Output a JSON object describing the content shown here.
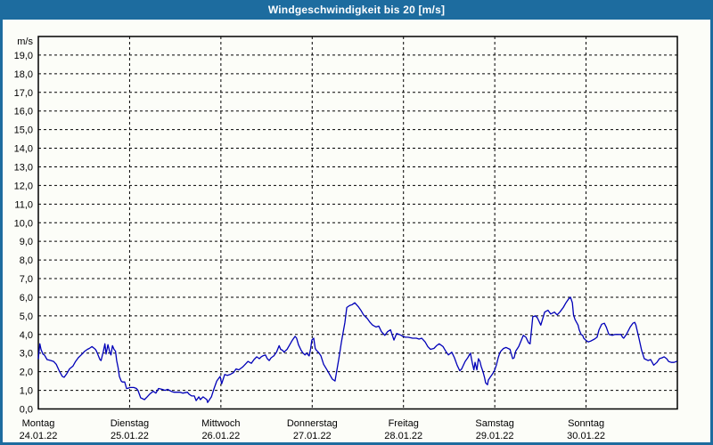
{
  "window": {
    "title": "Windgeschwindigkeit bis 20 [m/s]"
  },
  "colors": {
    "frame_blue": "#1d6c9f",
    "title_text": "#ffffff",
    "content_bg": "#fcfdf8",
    "axis_black": "#000000",
    "line_blue": "#0000b8"
  },
  "chart_data": {
    "type": "line",
    "title": "Windgeschwindigkeit bis 20 [m/s]",
    "unit_label": "m/s",
    "ylim": [
      0,
      20
    ],
    "ytick_step": 1,
    "ytick_decimal_comma": true,
    "grid": "dashed",
    "legend": "none",
    "x_range_hours": [
      0,
      168
    ],
    "day_span_hours": 24,
    "days": [
      {
        "name": "Montag",
        "date": "24.01.22"
      },
      {
        "name": "Dienstag",
        "date": "25.01.22"
      },
      {
        "name": "Mittwoch",
        "date": "26.01.22"
      },
      {
        "name": "Donnerstag",
        "date": "27.01.22"
      },
      {
        "name": "Freitag",
        "date": "28.01.22"
      },
      {
        "name": "Samstag",
        "date": "29.01.22"
      },
      {
        "name": "Sonntag",
        "date": "30.01.22"
      }
    ],
    "series": [
      {
        "name": "Windgeschwindigkeit [m/s]",
        "color": "#0000b8",
        "points": [
          [
            0,
            2.7
          ],
          [
            0.4,
            3.5
          ],
          [
            0.7,
            3.2
          ],
          [
            1.2,
            2.95
          ],
          [
            1.6,
            2.9
          ],
          [
            2.3,
            2.65
          ],
          [
            3.3,
            2.6
          ],
          [
            4,
            2.55
          ],
          [
            4.7,
            2.4
          ],
          [
            5.6,
            2
          ],
          [
            6.3,
            1.75
          ],
          [
            6.8,
            1.7
          ],
          [
            7.5,
            1.9
          ],
          [
            8.2,
            2.15
          ],
          [
            9.1,
            2.3
          ],
          [
            9.8,
            2.55
          ],
          [
            10.5,
            2.75
          ],
          [
            11.5,
            2.95
          ],
          [
            12.2,
            3.1
          ],
          [
            12.9,
            3.2
          ],
          [
            13.4,
            3.25
          ],
          [
            14.1,
            3.35
          ],
          [
            15,
            3.2
          ],
          [
            15.3,
            3.1
          ],
          [
            16.2,
            2.65
          ],
          [
            16.5,
            2.6
          ],
          [
            17.1,
            3.1
          ],
          [
            17.5,
            3.5
          ],
          [
            17.8,
            2.95
          ],
          [
            18.3,
            3.45
          ],
          [
            18.8,
            3.05
          ],
          [
            19.1,
            2.9
          ],
          [
            19.5,
            3.4
          ],
          [
            19.9,
            3.2
          ],
          [
            20.3,
            3.1
          ],
          [
            20.6,
            2.6
          ],
          [
            21,
            2.2
          ],
          [
            21.3,
            1.75
          ],
          [
            21.8,
            1.5
          ],
          [
            22.1,
            1.45
          ],
          [
            22.7,
            1.45
          ],
          [
            23.2,
            1.1
          ],
          [
            23.4,
            1.1
          ],
          [
            24.1,
            1.15
          ],
          [
            25.1,
            1.15
          ],
          [
            25.8,
            1.1
          ],
          [
            26.2,
            1
          ],
          [
            26.9,
            0.6
          ],
          [
            27.9,
            0.5
          ],
          [
            28.6,
            0.65
          ],
          [
            29.3,
            0.8
          ],
          [
            30.2,
            0.95
          ],
          [
            30.9,
            0.85
          ],
          [
            31.6,
            1.1
          ],
          [
            32.6,
            1.05
          ],
          [
            33.3,
            1
          ],
          [
            34,
            1.05
          ],
          [
            34.9,
            0.95
          ],
          [
            35.6,
            0.9
          ],
          [
            37.3,
            0.9
          ],
          [
            38,
            0.85
          ],
          [
            39.2,
            0.9
          ],
          [
            39.6,
            0.8
          ],
          [
            40.3,
            0.7
          ],
          [
            41,
            0.7
          ],
          [
            41.5,
            0.45
          ],
          [
            42.2,
            0.65
          ],
          [
            42.6,
            0.5
          ],
          [
            43.3,
            0.65
          ],
          [
            44.3,
            0.5
          ],
          [
            44.5,
            0.35
          ],
          [
            45.5,
            0.65
          ],
          [
            46.2,
            1.1
          ],
          [
            46.9,
            1.5
          ],
          [
            47.8,
            1.75
          ],
          [
            48.2,
            1.35
          ],
          [
            49,
            1.85
          ],
          [
            49.7,
            1.8
          ],
          [
            50.4,
            1.85
          ],
          [
            51.3,
            1.95
          ],
          [
            52,
            2.15
          ],
          [
            52.7,
            2.1
          ],
          [
            53.7,
            2.25
          ],
          [
            54.4,
            2.4
          ],
          [
            55.1,
            2.55
          ],
          [
            56,
            2.45
          ],
          [
            56.7,
            2.65
          ],
          [
            57.4,
            2.8
          ],
          [
            58.1,
            2.7
          ],
          [
            58.6,
            2.8
          ],
          [
            59,
            2.85
          ],
          [
            59.7,
            2.9
          ],
          [
            60.2,
            2.7
          ],
          [
            60.7,
            2.6
          ],
          [
            61.2,
            2.75
          ],
          [
            61.9,
            2.85
          ],
          [
            62.6,
            3.05
          ],
          [
            63.3,
            3.4
          ],
          [
            63.7,
            3.2
          ],
          [
            64.2,
            3.15
          ],
          [
            64.6,
            3.05
          ],
          [
            65.4,
            3.2
          ],
          [
            66.1,
            3.45
          ],
          [
            66.8,
            3.7
          ],
          [
            67.5,
            3.9
          ],
          [
            67.9,
            3.8
          ],
          [
            68.4,
            3.45
          ],
          [
            69.1,
            3.15
          ],
          [
            69.6,
            3
          ],
          [
            70.1,
            2.9
          ],
          [
            70.5,
            3
          ],
          [
            71.2,
            2.85
          ],
          [
            71.6,
            3.25
          ],
          [
            71.9,
            3.7
          ],
          [
            72.4,
            3.8
          ],
          [
            72.8,
            3.25
          ],
          [
            73.1,
            3.15
          ],
          [
            73.6,
            3.05
          ],
          [
            73.8,
            3
          ],
          [
            74.3,
            2.85
          ],
          [
            75,
            2.4
          ],
          [
            75.9,
            2.1
          ],
          [
            76.6,
            1.85
          ],
          [
            77.3,
            1.6
          ],
          [
            78,
            1.5
          ],
          [
            79,
            2.7
          ],
          [
            79.7,
            3.6
          ],
          [
            80.6,
            4.65
          ],
          [
            81.1,
            5.45
          ],
          [
            81.8,
            5.55
          ],
          [
            82.5,
            5.6
          ],
          [
            83.2,
            5.7
          ],
          [
            84.1,
            5.5
          ],
          [
            84.8,
            5.3
          ],
          [
            85.5,
            5.05
          ],
          [
            86.5,
            4.85
          ],
          [
            87.2,
            4.65
          ],
          [
            87.9,
            4.5
          ],
          [
            88.8,
            4.4
          ],
          [
            89.5,
            4.45
          ],
          [
            90.2,
            4.15
          ],
          [
            91.1,
            3.95
          ],
          [
            91.8,
            4.15
          ],
          [
            92.6,
            4.25
          ],
          [
            93,
            4
          ],
          [
            93.5,
            3.7
          ],
          [
            94.2,
            4.05
          ],
          [
            94.9,
            4
          ],
          [
            95.4,
            3.95
          ],
          [
            95.8,
            3.9
          ],
          [
            96.5,
            3.85
          ],
          [
            97.2,
            3.85
          ],
          [
            98.4,
            3.8
          ],
          [
            99.4,
            3.8
          ],
          [
            100.1,
            3.75
          ],
          [
            100.8,
            3.8
          ],
          [
            101.7,
            3.6
          ],
          [
            102.4,
            3.35
          ],
          [
            103.1,
            3.2
          ],
          [
            104,
            3.25
          ],
          [
            104.7,
            3.4
          ],
          [
            105.4,
            3.5
          ],
          [
            106.4,
            3.35
          ],
          [
            107.1,
            3.1
          ],
          [
            107.8,
            2.9
          ],
          [
            108.7,
            3.05
          ],
          [
            109.4,
            2.75
          ],
          [
            110.1,
            2.35
          ],
          [
            110.8,
            2.05
          ],
          [
            111.3,
            2.15
          ],
          [
            112.2,
            2.55
          ],
          [
            112.9,
            2.75
          ],
          [
            113.6,
            3
          ],
          [
            114.1,
            2.45
          ],
          [
            114.5,
            2.1
          ],
          [
            114.8,
            2.5
          ],
          [
            115.3,
            2.1
          ],
          [
            115.7,
            2.7
          ],
          [
            116.1,
            2.55
          ],
          [
            116.4,
            2.3
          ],
          [
            116.9,
            2
          ],
          [
            117.3,
            1.7
          ],
          [
            117.6,
            1.4
          ],
          [
            118.1,
            1.3
          ],
          [
            118.3,
            1.55
          ],
          [
            118.8,
            1.7
          ],
          [
            119.3,
            1.85
          ],
          [
            119.9,
            2.05
          ],
          [
            120.4,
            2.35
          ],
          [
            120.9,
            2.75
          ],
          [
            121.3,
            3
          ],
          [
            121.6,
            3.1
          ],
          [
            122.3,
            3.25
          ],
          [
            123,
            3.3
          ],
          [
            124,
            3.2
          ],
          [
            124.7,
            2.7
          ],
          [
            125.1,
            2.75
          ],
          [
            125.5,
            3.1
          ],
          [
            126.3,
            3.35
          ],
          [
            127,
            3.7
          ],
          [
            127.5,
            3.95
          ],
          [
            128.2,
            3.85
          ],
          [
            128.9,
            3.55
          ],
          [
            129.3,
            3.5
          ],
          [
            130,
            4.95
          ],
          [
            130.7,
            5
          ],
          [
            131.2,
            4.9
          ],
          [
            132.1,
            4.5
          ],
          [
            133.1,
            5.2
          ],
          [
            134,
            5.3
          ],
          [
            134.7,
            5.1
          ],
          [
            135.7,
            5.2
          ],
          [
            136.4,
            5.05
          ],
          [
            137.1,
            5.2
          ],
          [
            138,
            5.45
          ],
          [
            138.7,
            5.7
          ],
          [
            139.4,
            5.9
          ],
          [
            139.9,
            6
          ],
          [
            140.4,
            5.7
          ],
          [
            140.7,
            5.05
          ],
          [
            141.1,
            4.8
          ],
          [
            141.5,
            4.65
          ],
          [
            141.9,
            4.5
          ],
          [
            142.2,
            4.25
          ],
          [
            142.7,
            4
          ],
          [
            143.1,
            3.95
          ],
          [
            143.4,
            3.8
          ],
          [
            143.9,
            3.7
          ],
          [
            144.2,
            3.65
          ],
          [
            144.6,
            3.6
          ],
          [
            145.3,
            3.65
          ],
          [
            146.2,
            3.75
          ],
          [
            146.9,
            3.85
          ],
          [
            147.4,
            4.25
          ],
          [
            148.1,
            4.55
          ],
          [
            148.8,
            4.6
          ],
          [
            149.3,
            4.4
          ],
          [
            150,
            4
          ],
          [
            150.9,
            3.95
          ],
          [
            151.6,
            4
          ],
          [
            152.5,
            4
          ],
          [
            153.2,
            4
          ],
          [
            153.6,
            3.85
          ],
          [
            153.9,
            3.8
          ],
          [
            154.6,
            4
          ],
          [
            155.6,
            4.4
          ],
          [
            156.3,
            4.6
          ],
          [
            156.8,
            4.65
          ],
          [
            157.1,
            4.5
          ],
          [
            157.9,
            3.8
          ],
          [
            158.6,
            3.15
          ],
          [
            159.3,
            2.7
          ],
          [
            160.3,
            2.6
          ],
          [
            161,
            2.65
          ],
          [
            161.4,
            2.5
          ],
          [
            161.8,
            2.35
          ],
          [
            162.6,
            2.5
          ],
          [
            163.3,
            2.7
          ],
          [
            164,
            2.75
          ],
          [
            164.5,
            2.8
          ],
          [
            165.2,
            2.7
          ],
          [
            165.7,
            2.55
          ],
          [
            166.4,
            2.5
          ],
          [
            167.1,
            2.5
          ],
          [
            167.8,
            2.55
          ]
        ]
      }
    ]
  }
}
